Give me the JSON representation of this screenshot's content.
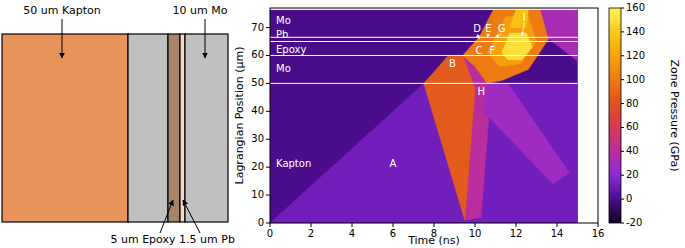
{
  "diagram": {
    "labels": [
      "50 um Kapton",
      "10 um Mo",
      "5 um Epoxy",
      "1.5 um Pb"
    ]
  },
  "chart_data": {
    "type": "heatmap",
    "x_label": "Time (ns)",
    "y_label": "Lagrangian Position (µm)",
    "xlim": [
      0,
      16
    ],
    "xticks": [
      0,
      2,
      4,
      6,
      8,
      10,
      12,
      14,
      16
    ],
    "ylim": [
      0,
      77
    ],
    "yticks": [
      0,
      10,
      20,
      30,
      40,
      50,
      60,
      70
    ],
    "colorbar": {
      "label": "Zone Pressure (GPa)",
      "range": [
        -20,
        160
      ],
      "ticks": [
        -20,
        0,
        20,
        40,
        60,
        80,
        100,
        120,
        140,
        160
      ]
    },
    "layers": [
      {
        "name": "Kapton",
        "from": 0,
        "to": 50,
        "label_y": 21
      },
      {
        "name": "Mo",
        "from": 50,
        "to": 60,
        "label_y": 55
      },
      {
        "name": "Epoxy",
        "from": 60,
        "to": 65,
        "label_y": 62
      },
      {
        "name": "Pb",
        "from": 65,
        "to": 66.5,
        "label_y": 67.2
      },
      {
        "name": "Mo",
        "from": 66.5,
        "to": 76.5,
        "label_y": 72.5
      }
    ],
    "regions": [
      {
        "points": [
          [
            0,
            0
          ],
          [
            15,
            0
          ],
          [
            15,
            76.5
          ],
          [
            0,
            76.5
          ]
        ],
        "value": 0
      },
      {
        "points": [
          [
            0,
            0
          ],
          [
            7.5,
            50
          ],
          [
            15,
            50
          ],
          [
            15,
            0
          ]
        ],
        "value": 12
      },
      {
        "points": [
          [
            9.4,
            60
          ],
          [
            10.4,
            60
          ],
          [
            10.8,
            50
          ],
          [
            10.3,
            2
          ],
          [
            9.5,
            1
          ]
        ],
        "value": 40
      },
      {
        "points": [
          [
            7.5,
            50
          ],
          [
            8.7,
            60
          ],
          [
            9.4,
            60
          ],
          [
            10.0,
            48
          ],
          [
            9.5,
            1
          ]
        ],
        "value": 85
      },
      {
        "points": [
          [
            10.6,
            50
          ],
          [
            11.6,
            50
          ],
          [
            14.6,
            18
          ],
          [
            13.8,
            14
          ],
          [
            10.4,
            40
          ]
        ],
        "value": 28
      },
      {
        "points": [
          [
            9.4,
            60
          ],
          [
            10.2,
            66.5
          ],
          [
            10.9,
            76.5
          ],
          [
            13.2,
            76.5
          ],
          [
            13.6,
            66
          ],
          [
            12.6,
            55
          ],
          [
            11.3,
            51
          ],
          [
            10.6,
            50
          ],
          [
            10.0,
            56
          ]
        ],
        "value": 100
      },
      {
        "points": [
          [
            13.2,
            76.5
          ],
          [
            13.6,
            66
          ],
          [
            15,
            58
          ],
          [
            15,
            76.5
          ]
        ],
        "value": 32
      },
      {
        "points": [
          [
            10.6,
            61
          ],
          [
            11.0,
            66.5
          ],
          [
            11.5,
            74
          ],
          [
            12.6,
            74
          ],
          [
            13.0,
            65
          ],
          [
            12.2,
            57
          ],
          [
            11.2,
            56
          ]
        ],
        "value": 118
      },
      {
        "points": [
          [
            11.3,
            61
          ],
          [
            11.7,
            68
          ],
          [
            12.5,
            68
          ],
          [
            12.8,
            63
          ],
          [
            12.3,
            58.5
          ],
          [
            11.6,
            58.5
          ]
        ],
        "value": 150
      },
      {
        "points": [
          [
            11.7,
            70
          ],
          [
            12.0,
            76.5
          ],
          [
            12.6,
            76.5
          ],
          [
            12.5,
            70
          ]
        ],
        "value": 135
      }
    ],
    "annotations": [
      {
        "text": "A",
        "x": 6,
        "y": 21
      },
      {
        "text": "B",
        "x": 8.9,
        "y": 57
      },
      {
        "text": "C",
        "x": 10.2,
        "y": 61.5
      },
      {
        "text": "D",
        "x": 10.1,
        "y": 69.5,
        "target": [
          10.2,
          66
        ]
      },
      {
        "text": "E",
        "x": 10.65,
        "y": 69.5,
        "target": [
          10.6,
          66.5
        ]
      },
      {
        "text": "F",
        "x": 10.85,
        "y": 61.5
      },
      {
        "text": "G",
        "x": 11.3,
        "y": 69.5,
        "target": [
          11.0,
          66.5
        ]
      },
      {
        "text": "H",
        "x": 10.3,
        "y": 47
      },
      {
        "text": "I",
        "x": 12.4,
        "y": 73.5,
        "target": [
          12.3,
          67
        ]
      }
    ]
  }
}
